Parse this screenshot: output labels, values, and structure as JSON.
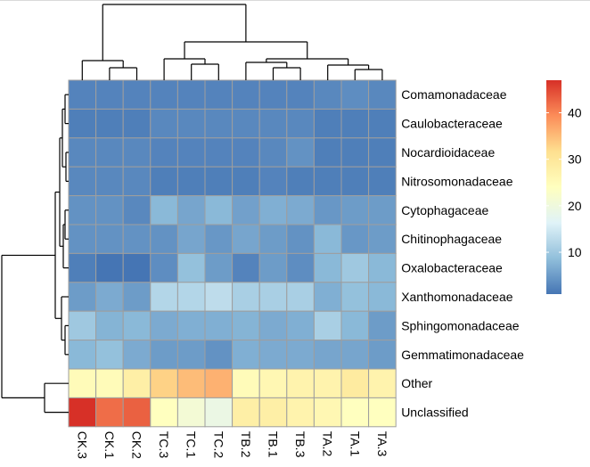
{
  "chart_data": {
    "type": "heatmap",
    "title": "",
    "columns": [
      "CK.3",
      "CK.1",
      "CK.2",
      "TC.3",
      "TC.1",
      "TC.2",
      "TB.2",
      "TB.1",
      "TB.3",
      "TA.2",
      "TA.1",
      "TA.3"
    ],
    "rows": [
      "Comamonadaceae",
      "Caulobacteraceae",
      "Nocardioidaceae",
      "Nitrosomonadaceae",
      "Cytophagaceae",
      "Chitinophagaceae",
      "Oxalobacteraceae",
      "Xanthomonadaceae",
      "Sphingomonadaceae",
      "Gemmatimonadaceae",
      "Other",
      "Unclassified"
    ],
    "values": [
      [
        2.5,
        2.5,
        2.5,
        2.5,
        2.5,
        2.5,
        2.5,
        2.5,
        2.5,
        3,
        3.5,
        3
      ],
      [
        2,
        2,
        2,
        3,
        3,
        3,
        3,
        3,
        3,
        2,
        2,
        2
      ],
      [
        3,
        3,
        3,
        2.5,
        2.5,
        2.5,
        2.5,
        3,
        4,
        2,
        2,
        2
      ],
      [
        3,
        3,
        3,
        2,
        2,
        2,
        2,
        2.5,
        2,
        2,
        2,
        2
      ],
      [
        4,
        4,
        3,
        8,
        6,
        8,
        5.5,
        7,
        6.5,
        4.5,
        5,
        5
      ],
      [
        4,
        4,
        4,
        4,
        6,
        4.5,
        6,
        5,
        4,
        8,
        4.5,
        5
      ],
      [
        2,
        1,
        1,
        3.5,
        9,
        5,
        2.5,
        5,
        3.5,
        8,
        10,
        8
      ],
      [
        5,
        6.5,
        5,
        12,
        12,
        13,
        11,
        11,
        11,
        7,
        9,
        8
      ],
      [
        10,
        7.5,
        8,
        6.5,
        7,
        7,
        7.5,
        6.5,
        7,
        11,
        8,
        5
      ],
      [
        8,
        9,
        6.5,
        5,
        5,
        4,
        7,
        6.5,
        6.5,
        6,
        6,
        5
      ],
      [
        25,
        25,
        28,
        33,
        35,
        36,
        25,
        26,
        27,
        27,
        29,
        27
      ],
      [
        48,
        42,
        43,
        24,
        21,
        19,
        28,
        28,
        27,
        26,
        24,
        24
      ]
    ],
    "colorbar": {
      "ticks": [
        10,
        20,
        30,
        40
      ],
      "range": [
        1,
        47
      ],
      "colors": [
        "#4575b4",
        "#91bfdb",
        "#e0f3f8",
        "#ffffbf",
        "#fee090",
        "#fc8d59",
        "#d73027"
      ]
    },
    "legend_position": "right",
    "row_dendrogram": "left",
    "column_dendrogram": "top"
  }
}
